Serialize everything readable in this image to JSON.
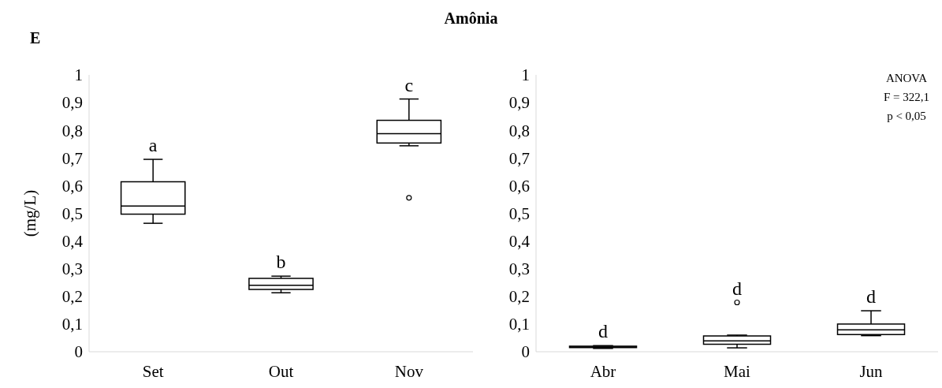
{
  "chart_data": [
    {
      "type": "box",
      "title": "Amônia",
      "ylabel": "(mg/L)",
      "categories": [
        "Set",
        "Out",
        "Nov"
      ],
      "boxes": [
        {
          "low": 0.464,
          "q1": 0.497,
          "median": 0.526,
          "q3": 0.614,
          "high": 0.695
        },
        {
          "low": 0.213,
          "q1": 0.225,
          "median": 0.24,
          "q3": 0.265,
          "high": 0.273
        },
        {
          "low": 0.744,
          "q1": 0.754,
          "median": 0.788,
          "q3": 0.836,
          "high": 0.913,
          "outliers": [
            0.556
          ]
        }
      ],
      "ylim": [
        0,
        1
      ],
      "yticks": [
        {
          "value": 0,
          "label": "0"
        },
        {
          "value": 0.1,
          "label": "0,1"
        },
        {
          "value": 0.2,
          "label": "0,2"
        },
        {
          "value": 0.3,
          "label": "0,3"
        },
        {
          "value": 0.4,
          "label": "0,4"
        },
        {
          "value": 0.5,
          "label": "0,5"
        },
        {
          "value": 0.6,
          "label": "0,6"
        },
        {
          "value": 0.7,
          "label": "0,7"
        },
        {
          "value": 0.8,
          "label": "0,8"
        },
        {
          "value": 0.9,
          "label": "0,9"
        },
        {
          "value": 1,
          "label": "1"
        }
      ],
      "annotations": [
        "E",
        {
          "text": "a",
          "x": "Set",
          "y": 0.695
        },
        {
          "text": "b",
          "x": "Out",
          "y": 0.273
        },
        {
          "text": "c",
          "x": "Nov",
          "y": 0.913
        }
      ]
    },
    {
      "type": "box",
      "categories": [
        "Abr",
        "Mai",
        "Jun"
      ],
      "boxes": [
        {
          "low": 0.012,
          "q1": 0.015,
          "median": 0.017,
          "q3": 0.02,
          "high": 0.022
        },
        {
          "low": 0.014,
          "q1": 0.027,
          "median": 0.039,
          "q3": 0.057,
          "high": 0.06,
          "outliers": [
            0.178
          ]
        },
        {
          "low": 0.058,
          "q1": 0.062,
          "median": 0.079,
          "q3": 0.1,
          "high": 0.148
        }
      ],
      "ylim": [
        0,
        1
      ],
      "yticks": [
        {
          "value": 0,
          "label": "0"
        },
        {
          "value": 0.1,
          "label": "0,1"
        },
        {
          "value": 0.2,
          "label": "0,2"
        },
        {
          "value": 0.3,
          "label": "0,3"
        },
        {
          "value": 0.4,
          "label": "0,4"
        },
        {
          "value": 0.5,
          "label": "0,5"
        },
        {
          "value": 0.6,
          "label": "0,6"
        },
        {
          "value": 0.7,
          "label": "0,7"
        },
        {
          "value": 0.8,
          "label": "0,8"
        },
        {
          "value": 0.9,
          "label": "0,9"
        },
        {
          "value": 1,
          "label": "1"
        }
      ],
      "annotations": [
        "ANOVA",
        "F = 322,1",
        "p < 0,05",
        {
          "text": "d",
          "x": "Abr",
          "y": 0.022
        },
        {
          "text": "d",
          "x": "Mai",
          "y": 0.06
        },
        {
          "text": "d",
          "x": "Jun",
          "y": 0.148
        }
      ]
    }
  ]
}
